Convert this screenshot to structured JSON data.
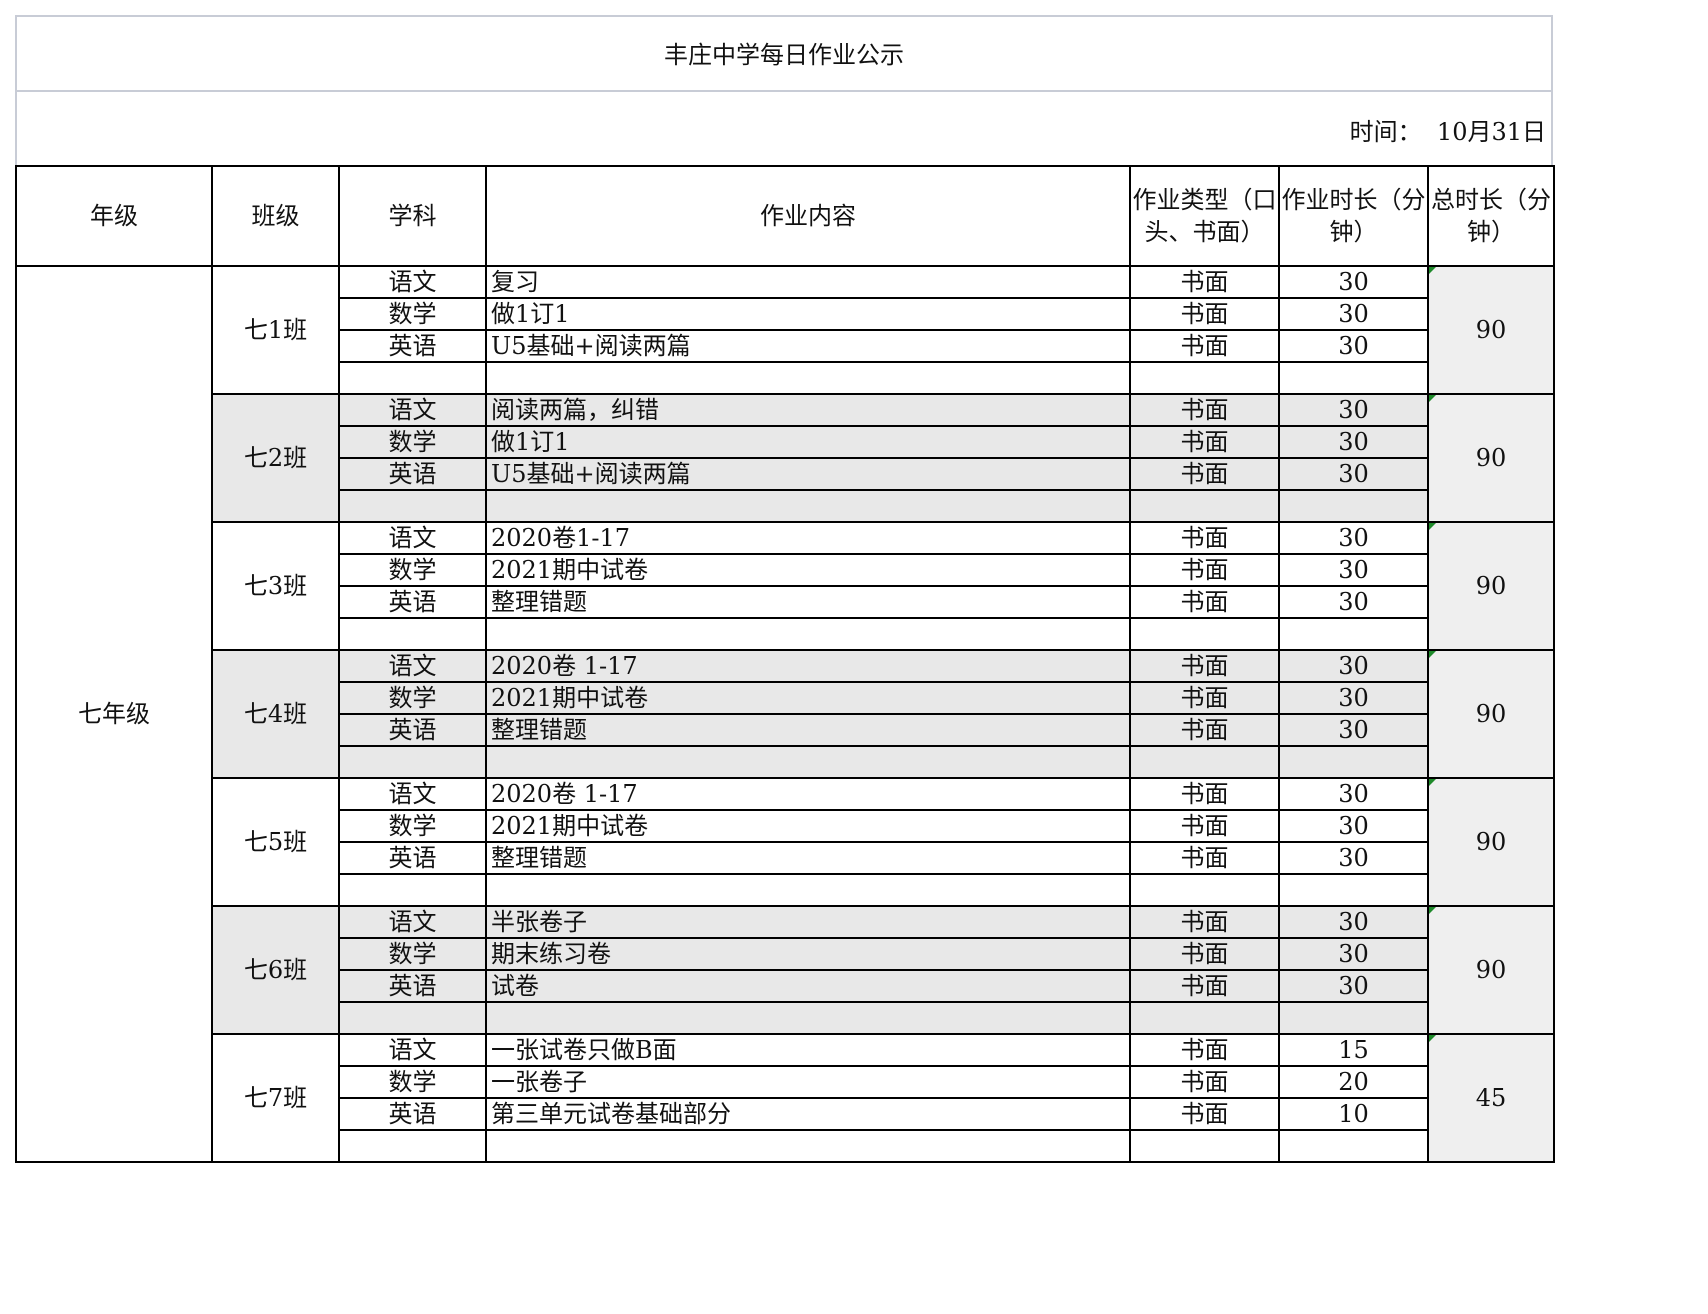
{
  "title": "丰庄中学每日作业公示",
  "date_label": "时间：",
  "date_value": "10月31日",
  "headers": [
    "年级",
    "班级",
    "学科",
    "作业内容",
    "作业类型（口头、书面）",
    "作业时长（分钟）",
    "总时长（分钟）"
  ],
  "grade": "七年级",
  "colors": {
    "border": "#000000",
    "shaded_row": "#e8e8e8",
    "total_cell": "#efefef",
    "comment_marker": "#1e8a2a"
  },
  "classes": [
    {
      "name": "七1班",
      "total": "90",
      "rows": [
        [
          "语文",
          "复习",
          "书面",
          "30"
        ],
        [
          "数学",
          "做1订1",
          "书面",
          "30"
        ],
        [
          "英语",
          "U5基础+阅读两篇",
          "书面",
          "30"
        ],
        [
          "",
          "",
          "",
          ""
        ]
      ]
    },
    {
      "name": "七2班",
      "total": "90",
      "rows": [
        [
          "语文",
          "阅读两篇，纠错",
          "书面",
          "30"
        ],
        [
          "数学",
          "做1订1",
          "书面",
          "30"
        ],
        [
          "英语",
          "U5基础+阅读两篇",
          "书面",
          "30"
        ],
        [
          "",
          "",
          "",
          ""
        ]
      ]
    },
    {
      "name": "七3班",
      "total": "90",
      "rows": [
        [
          "语文",
          "2020卷1-17",
          "书面",
          "30"
        ],
        [
          "数学",
          "2021期中试卷",
          "书面",
          "30"
        ],
        [
          "英语",
          "整理错题",
          "书面",
          "30"
        ],
        [
          "",
          "",
          "",
          ""
        ]
      ]
    },
    {
      "name": "七4班",
      "total": "90",
      "rows": [
        [
          "语文",
          "2020卷  1-17",
          "书面",
          "30"
        ],
        [
          "数学",
          "2021期中试卷",
          "书面",
          "30"
        ],
        [
          "英语",
          "整理错题",
          "书面",
          "30"
        ],
        [
          "",
          "",
          "",
          ""
        ]
      ]
    },
    {
      "name": "七5班",
      "total": "90",
      "rows": [
        [
          "语文",
          "2020卷  1-17",
          "书面",
          "30"
        ],
        [
          "数学",
          "2021期中试卷",
          "书面",
          "30"
        ],
        [
          "英语",
          "整理错题",
          "书面",
          "30"
        ],
        [
          "",
          "",
          "",
          ""
        ]
      ]
    },
    {
      "name": "七6班",
      "total": "90",
      "rows": [
        [
          "语文",
          "半张卷子",
          "书面",
          "30"
        ],
        [
          "数学",
          "期末练习卷",
          "书面",
          "30"
        ],
        [
          "英语",
          "试卷",
          "书面",
          "30"
        ],
        [
          "",
          "",
          "",
          ""
        ]
      ]
    },
    {
      "name": "七7班",
      "total": "45",
      "rows": [
        [
          "语文",
          "一张试卷只做B面",
          "书面",
          "15"
        ],
        [
          "数学",
          "一张卷子",
          "书面",
          "20"
        ],
        [
          "英语",
          "第三单元试卷基础部分",
          "书面",
          "10"
        ],
        [
          "",
          "",
          "",
          ""
        ]
      ]
    }
  ]
}
